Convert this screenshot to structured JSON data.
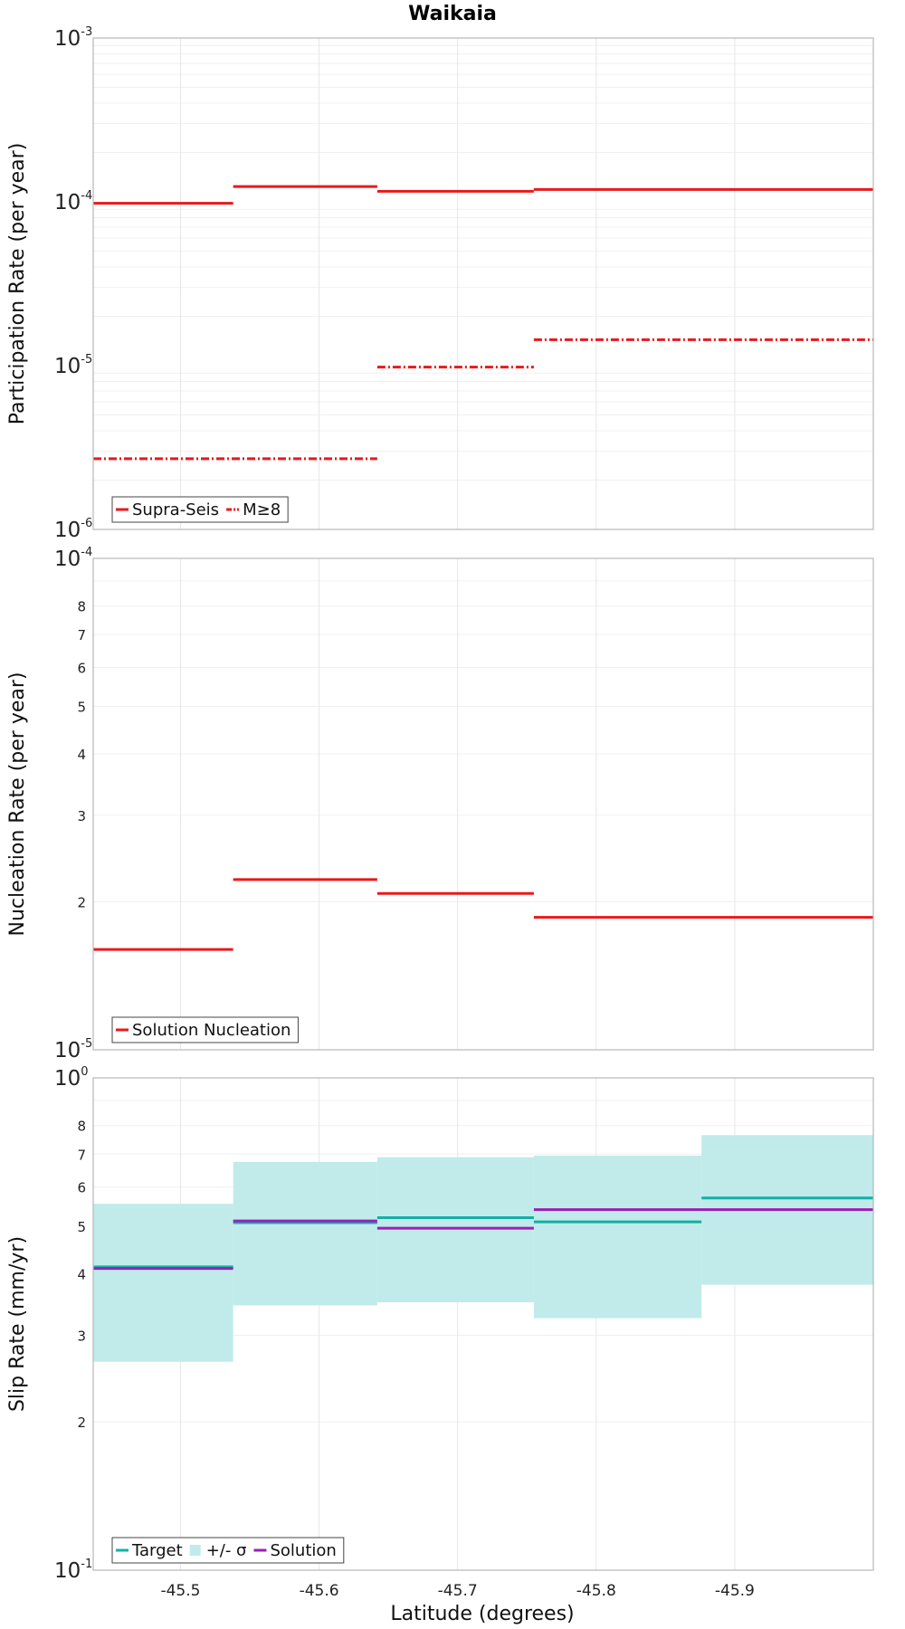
{
  "title": "Waikaia",
  "xlabel": "Latitude (degrees)",
  "x_ticks": [
    -45.5,
    -45.6,
    -45.7,
    -45.8,
    -45.9
  ],
  "x_tick_labels": [
    "-45.5",
    "-45.6",
    "-45.7",
    "-45.8",
    "-45.9"
  ],
  "colors": {
    "red": "#e8191c",
    "teal": "#13b0a6",
    "band": "#c0ebea",
    "purple": "#9b1fb8"
  },
  "chart_data": [
    {
      "type": "line",
      "subtype": "step",
      "xlim": [
        -45.437,
        -46.0
      ],
      "ylim": [
        1e-06,
        0.001
      ],
      "yscale": "log",
      "ylabel": "Participation Rate (per year)",
      "y_ticks": [
        {
          "mant": "10",
          "exp": "-6"
        },
        {
          "mant": "10",
          "exp": "-5"
        },
        {
          "mant": "10",
          "exp": "-4"
        },
        {
          "mant": "10",
          "exp": "-3"
        }
      ],
      "legend": "bottom-left",
      "series": [
        {
          "name": "Supra-Seis",
          "style": "solid",
          "color": "#e8191c",
          "segments": [
            [
              -45.437,
              -45.538,
              9.8e-05
            ],
            [
              -45.538,
              -45.642,
              0.000124
            ],
            [
              -45.642,
              -45.755,
              0.000116
            ],
            [
              -45.755,
              -46.0,
              0.000119
            ]
          ]
        },
        {
          "name": "M≥8",
          "style": "dashdot",
          "color": "#e8191c",
          "segments": [
            [
              -45.437,
              -45.642,
              2.7e-06
            ],
            [
              -45.642,
              -45.755,
              9.8e-06
            ],
            [
              -45.755,
              -46.0,
              1.44e-05
            ]
          ]
        }
      ]
    },
    {
      "type": "line",
      "subtype": "step",
      "xlim": [
        -45.437,
        -46.0
      ],
      "ylim": [
        1e-05,
        0.0001
      ],
      "yscale": "log",
      "ylabel": "Nucleation Rate (per year)",
      "y_ticks": [
        {
          "mant": "10",
          "exp": "-5"
        },
        {
          "mant": "10",
          "exp": "-4"
        }
      ],
      "y_minor_labels": [
        "2",
        "3",
        "4",
        "5",
        "6",
        "7",
        "8"
      ],
      "legend": "bottom-left",
      "series": [
        {
          "name": "Solution Nucleation",
          "style": "solid",
          "color": "#e8191c",
          "segments": [
            [
              -45.437,
              -45.538,
              1.6e-05
            ],
            [
              -45.538,
              -45.642,
              2.22e-05
            ],
            [
              -45.642,
              -45.755,
              2.08e-05
            ],
            [
              -45.755,
              -46.0,
              1.86e-05
            ]
          ]
        }
      ]
    },
    {
      "type": "line",
      "subtype": "step",
      "xlim": [
        -45.437,
        -46.0
      ],
      "ylim": [
        0.1,
        1.0
      ],
      "yscale": "log",
      "ylabel": "Slip Rate (mm/yr)",
      "y_ticks": [
        {
          "mant": "10",
          "exp": "-1"
        },
        {
          "mant": "10",
          "exp": "0"
        }
      ],
      "y_minor_labels": [
        "2",
        "3",
        "4",
        "5",
        "6",
        "7",
        "8"
      ],
      "legend": "bottom-left",
      "band": {
        "name": "+/- σ",
        "color": "#c0ebea",
        "segments": [
          [
            -45.437,
            -45.538,
            0.265,
            0.555
          ],
          [
            -45.538,
            -45.642,
            0.345,
            0.675
          ],
          [
            -45.642,
            -45.755,
            0.35,
            0.69
          ],
          [
            -45.755,
            -45.876,
            0.325,
            0.695
          ],
          [
            -45.876,
            -46.0,
            0.38,
            0.765
          ]
        ]
      },
      "series": [
        {
          "name": "Target",
          "style": "solid",
          "color": "#13b0a6",
          "segments": [
            [
              -45.437,
              -45.538,
              0.413
            ],
            [
              -45.538,
              -45.642,
              0.508
            ],
            [
              -45.642,
              -45.755,
              0.52
            ],
            [
              -45.755,
              -45.876,
              0.51
            ],
            [
              -45.876,
              -46.0,
              0.57
            ]
          ]
        },
        {
          "name": "Solution",
          "style": "solid",
          "color": "#9b1fb8",
          "segments": [
            [
              -45.437,
              -45.538,
              0.41
            ],
            [
              -45.538,
              -45.642,
              0.512
            ],
            [
              -45.642,
              -45.755,
              0.495
            ],
            [
              -45.755,
              -46.0,
              0.54
            ]
          ]
        }
      ]
    }
  ]
}
